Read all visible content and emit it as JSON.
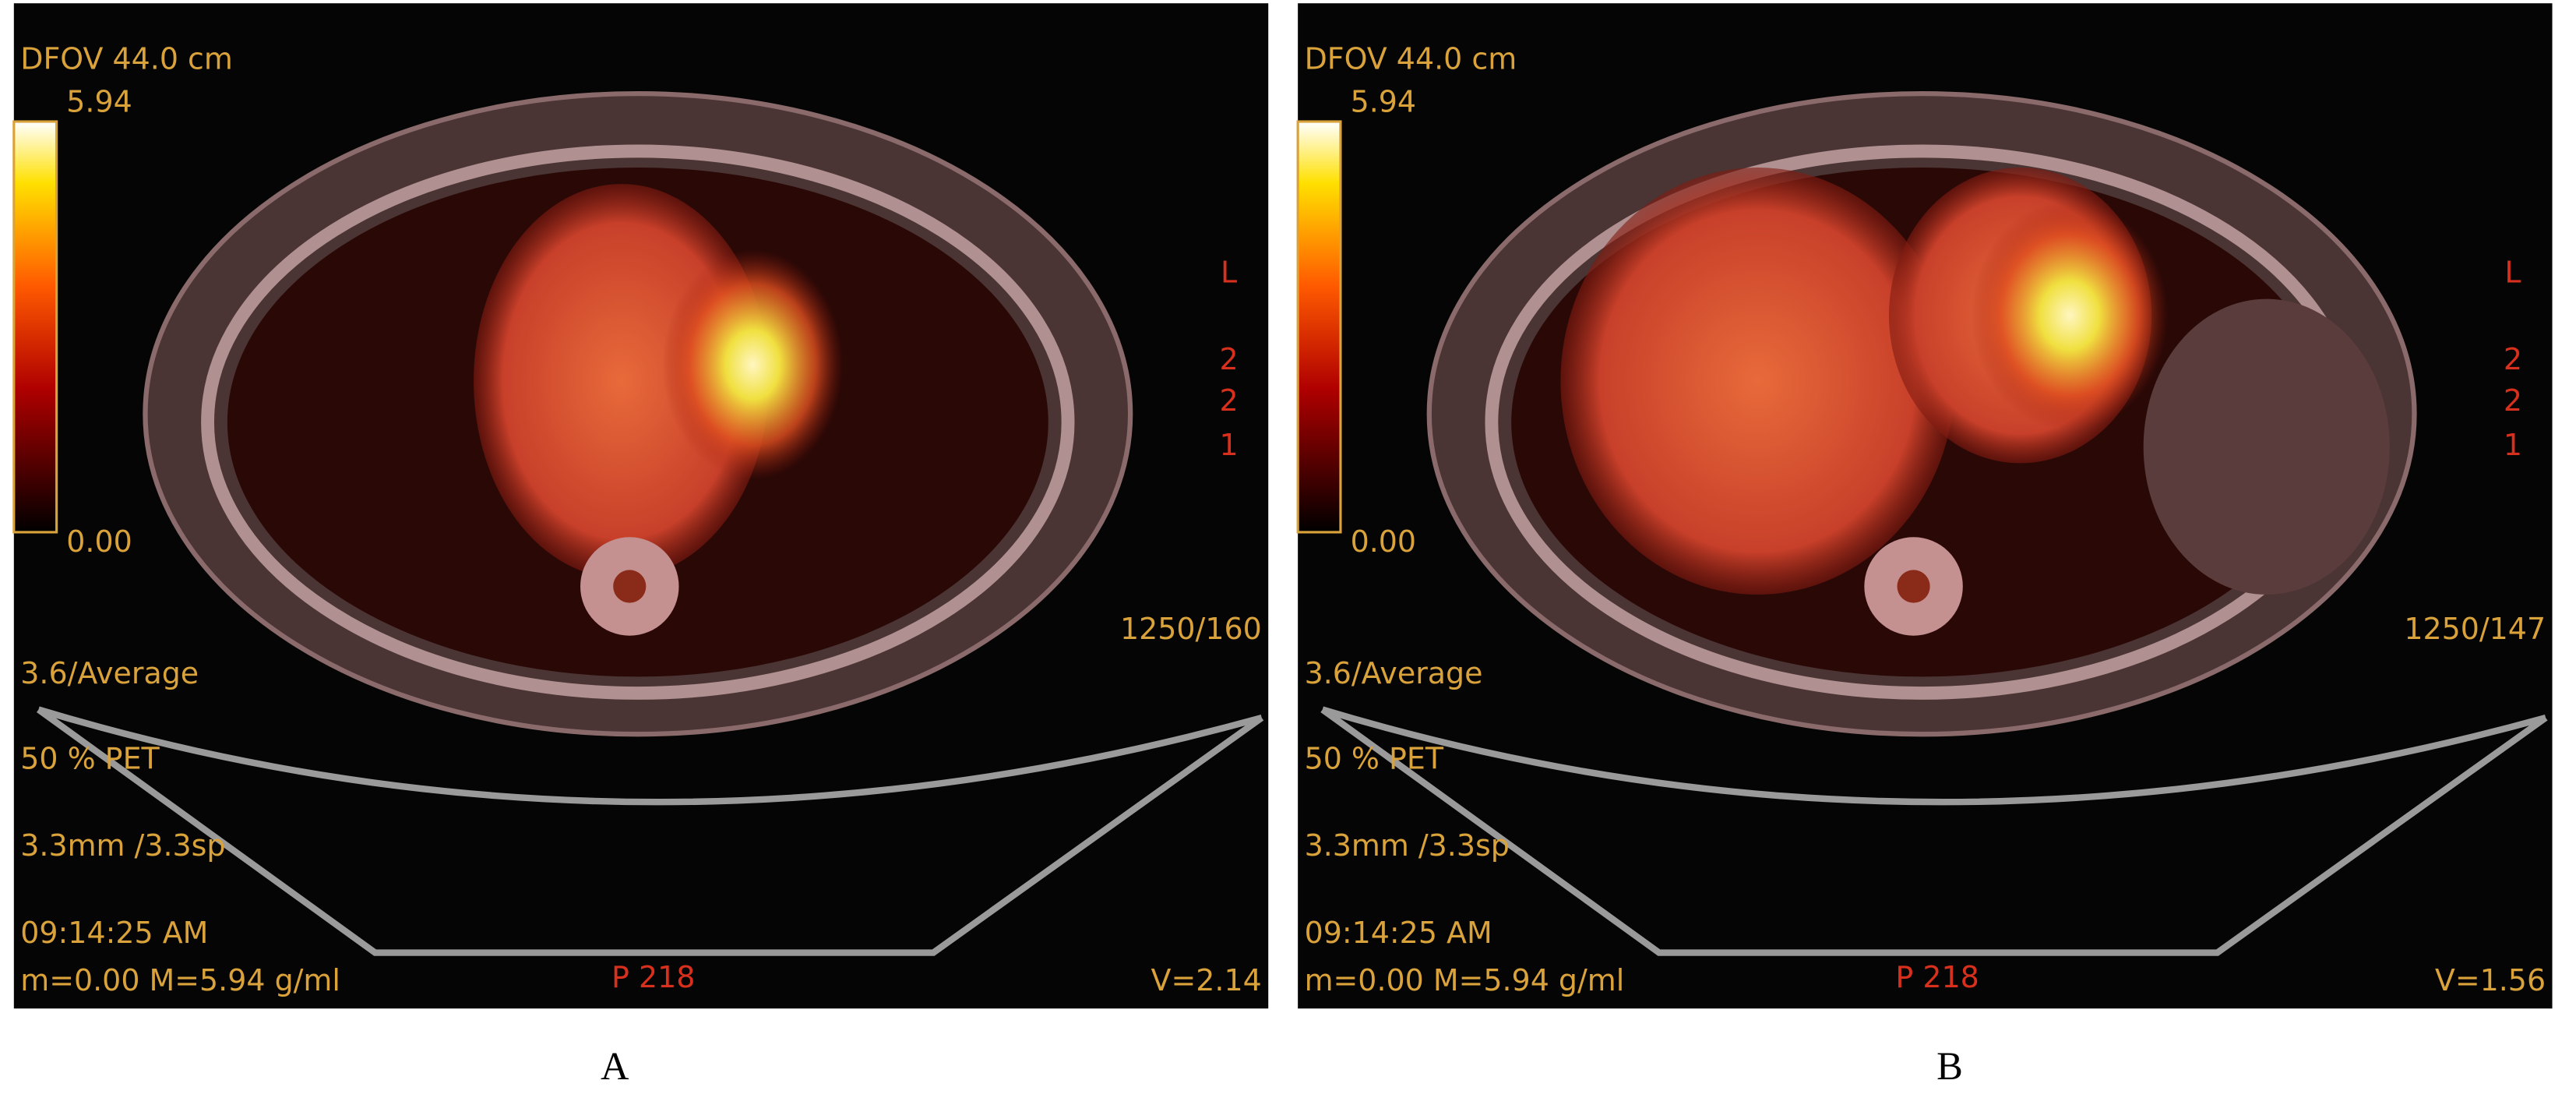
{
  "panels": [
    {
      "label": "A",
      "dfov": "DFOV 44.0 cm",
      "scale_max": "5.94",
      "scale_min": "0.00",
      "orientation": [
        "L",
        "2",
        "2",
        "1"
      ],
      "window": "1250/160",
      "recon": "3.6/Average",
      "fusion": "50 % PET",
      "slice": "3.3mm /3.3sp",
      "time": "09:14:25 AM",
      "suv_range": "m=0.00 M=5.94 g/ml",
      "position": "P 218",
      "volume": "V=2.14"
    },
    {
      "label": "B",
      "dfov": "DFOV 44.0 cm",
      "scale_max": "5.94",
      "scale_min": "0.00",
      "orientation": [
        "L",
        "2",
        "2",
        "1"
      ],
      "window": "1250/147",
      "recon": "3.6/Average",
      "fusion": "50 % PET",
      "slice": "3.3mm /3.3sp",
      "time": "09:14:25 AM",
      "suv_range": "m=0.00 M=5.94 g/ml",
      "position": "P 218",
      "volume": "V=1.56"
    }
  ]
}
